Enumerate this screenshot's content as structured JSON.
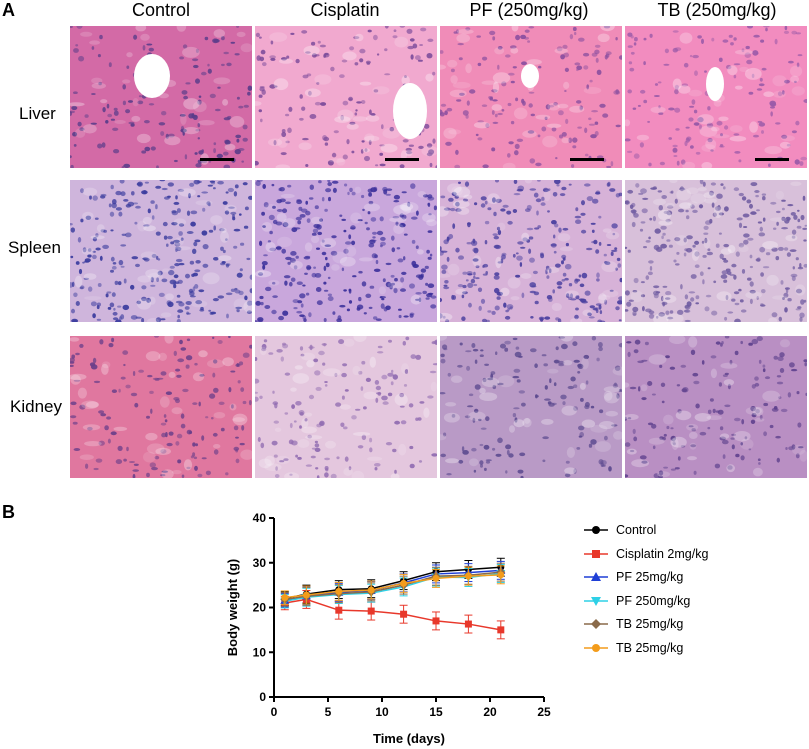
{
  "panel_a": {
    "letter": "A",
    "columns": [
      "Control",
      "Cisplatin",
      "PF (250mg/kg)",
      "TB (250mg/kg)"
    ],
    "rows": [
      "Liver",
      "Spleen",
      "Kidney"
    ]
  },
  "panel_b": {
    "letter": "B"
  },
  "chart_data": {
    "type": "line",
    "xlabel": "Time (days)",
    "ylabel": "Body weight (g)",
    "xlim": [
      0,
      25
    ],
    "ylim": [
      0,
      40
    ],
    "xticks": [
      0,
      5,
      10,
      15,
      20,
      25
    ],
    "yticks": [
      0,
      10,
      20,
      30,
      40
    ],
    "grid": false,
    "legend_position": "right",
    "x": [
      1,
      3,
      6,
      9,
      12,
      15,
      18,
      21
    ],
    "series": [
      {
        "name": "Control",
        "color": "#000000",
        "marker": "circle",
        "values": [
          22.0,
          23.0,
          24.0,
          24.2,
          26.0,
          28.0,
          28.5,
          29.0
        ]
      },
      {
        "name": "Cisplatin 2mg/kg",
        "color": "#e8382b",
        "marker": "square",
        "values": [
          21.0,
          21.8,
          19.4,
          19.2,
          18.5,
          17.0,
          16.3,
          15.0
        ]
      },
      {
        "name": "PF 25mg/kg",
        "color": "#1f3fd6",
        "marker": "triangle-up",
        "values": [
          21.6,
          22.6,
          23.4,
          23.8,
          25.5,
          27.5,
          27.8,
          28.3
        ]
      },
      {
        "name": "PF 250mg/kg",
        "color": "#2ed0e6",
        "marker": "triangle-down",
        "values": [
          21.4,
          22.3,
          22.9,
          23.2,
          24.6,
          26.8,
          26.7,
          27.6
        ]
      },
      {
        "name": "TB 25mg/kg",
        "color": "#8a6a4a",
        "marker": "diamond",
        "values": [
          21.8,
          22.5,
          23.1,
          23.5,
          25.0,
          27.0,
          27.2,
          27.9
        ]
      },
      {
        "name": "TB 25mg/kg",
        "color": "#f39c1b",
        "marker": "circle",
        "values": [
          22.2,
          22.8,
          23.6,
          23.9,
          25.4,
          26.5,
          27.0,
          27.3
        ]
      }
    ],
    "error": [
      1.5,
      2.0,
      2.0,
      2.0,
      2.0,
      2.0,
      2.0,
      2.0
    ]
  }
}
